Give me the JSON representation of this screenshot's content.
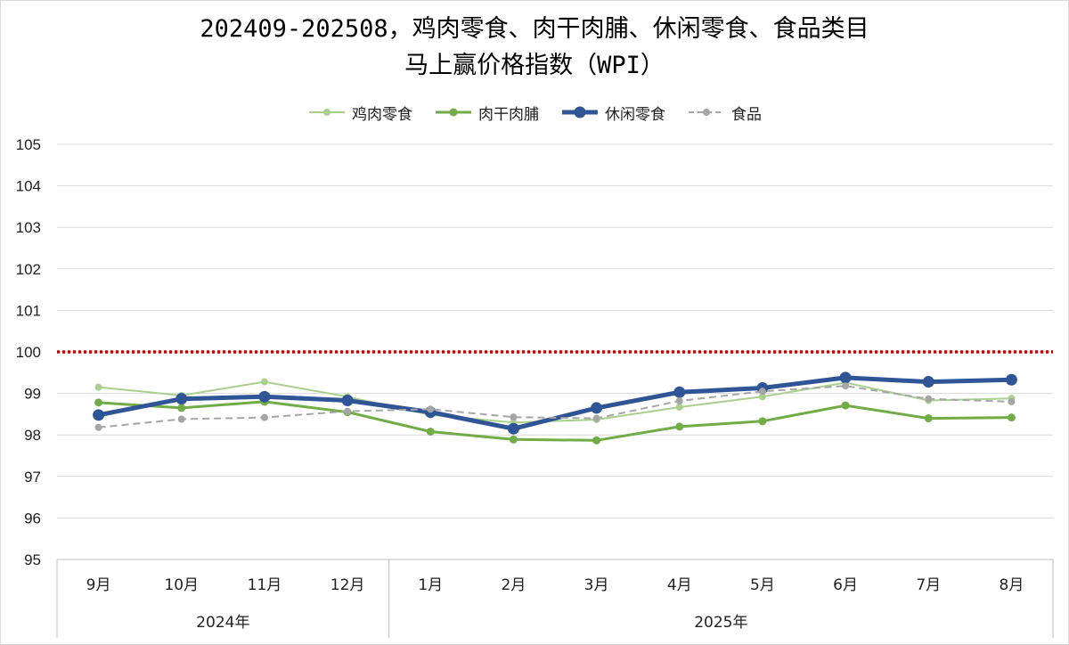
{
  "chart_data": {
    "type": "line",
    "title_line1": "202409-202508，鸡肉零食、肉干肉脯、休闲零食、食品类目",
    "title_line2": "马上赢价格指数（WPI）",
    "xlabel": "",
    "ylabel": "",
    "ylim": [
      95,
      105
    ],
    "yticks": [
      "105",
      "104",
      "103",
      "102",
      "101",
      "100",
      "99",
      "98",
      "97",
      "96",
      "95"
    ],
    "categories": [
      "9月",
      "10月",
      "11月",
      "12月",
      "1月",
      "2月",
      "3月",
      "4月",
      "5月",
      "6月",
      "7月",
      "8月"
    ],
    "groups": [
      {
        "label": "2024年",
        "span": 4
      },
      {
        "label": "2025年",
        "span": 8
      }
    ],
    "reference_line": {
      "value": 100,
      "color": "#c00000",
      "style": "dotted"
    },
    "grid": true,
    "legend_position": "top",
    "series": [
      {
        "name": "鸡肉零食",
        "color": "#a9d18e",
        "style": "solid",
        "width": "thin",
        "values": [
          99.15,
          98.95,
          99.28,
          98.92,
          98.48,
          98.3,
          98.37,
          98.67,
          98.92,
          99.26,
          98.83,
          98.88
        ]
      },
      {
        "name": "肉干肉脯",
        "color": "#70ad47",
        "style": "solid",
        "width": "medium",
        "values": [
          98.78,
          98.65,
          98.8,
          98.55,
          98.08,
          97.89,
          97.87,
          98.2,
          98.33,
          98.71,
          98.4,
          98.42
        ]
      },
      {
        "name": "休闲零食",
        "color": "#2f5597",
        "style": "solid",
        "width": "thick",
        "values": [
          98.48,
          98.87,
          98.92,
          98.83,
          98.55,
          98.15,
          98.65,
          99.03,
          99.13,
          99.38,
          99.28,
          99.33
        ]
      },
      {
        "name": "食品",
        "color": "#a6a6a6",
        "style": "dashed",
        "width": "thin",
        "values": [
          98.18,
          98.38,
          98.42,
          98.57,
          98.62,
          98.43,
          98.4,
          98.82,
          99.05,
          99.18,
          98.87,
          98.8
        ]
      }
    ]
  }
}
